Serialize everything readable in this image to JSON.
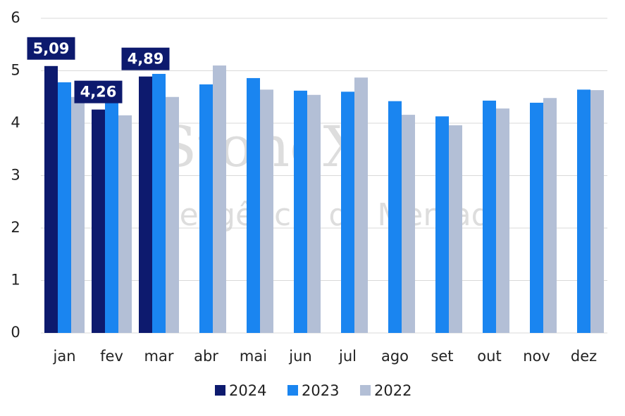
{
  "chart_data": {
    "type": "bar",
    "watermark": "StoneX",
    "watermark_subtitle": "Inteligência de Mercado",
    "categories": [
      "jan",
      "fev",
      "mar",
      "abr",
      "mai",
      "jun",
      "jul",
      "ago",
      "set",
      "out",
      "nov",
      "dez"
    ],
    "series": [
      {
        "name": "2024",
        "color": "#0d1a6e",
        "values": [
          5.09,
          4.26,
          4.89,
          null,
          null,
          null,
          null,
          null,
          null,
          null,
          null,
          null
        ],
        "value_labels": [
          "5,09",
          "4,26",
          "4,89",
          null,
          null,
          null,
          null,
          null,
          null,
          null,
          null,
          null
        ]
      },
      {
        "name": "2023",
        "color": "#1a85f0",
        "values": [
          4.78,
          4.4,
          4.94,
          4.74,
          4.86,
          4.62,
          4.6,
          4.42,
          4.13,
          4.43,
          4.39,
          4.64
        ]
      },
      {
        "name": "2022",
        "color": "#b3bfd6",
        "values": [
          4.5,
          4.15,
          4.5,
          5.1,
          4.64,
          4.54,
          4.87,
          4.16,
          3.96,
          4.28,
          4.48,
          4.63
        ]
      }
    ],
    "ylim": [
      0,
      6
    ],
    "yticks": [
      0,
      1,
      2,
      3,
      4,
      5,
      6
    ],
    "grid": true,
    "legend": "bottom"
  }
}
